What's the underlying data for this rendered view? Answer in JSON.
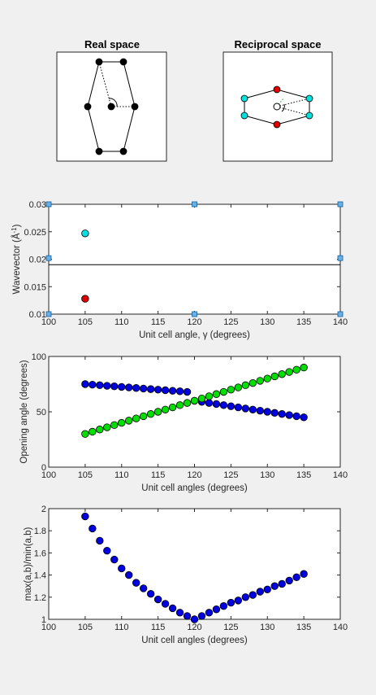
{
  "panels": {
    "real_space": {
      "title": "Real space",
      "markers": [
        {
          "x": 122,
          "y": 76,
          "color": "#000000"
        },
        {
          "x": 152,
          "y": 76,
          "color": "#000000"
        },
        {
          "x": 108,
          "y": 131,
          "color": "#000000"
        },
        {
          "x": 137,
          "y": 131,
          "color": "#000000"
        },
        {
          "x": 166,
          "y": 131,
          "color": "#000000"
        },
        {
          "x": 122,
          "y": 186,
          "color": "#000000"
        },
        {
          "x": 152,
          "y": 186,
          "color": "#000000"
        }
      ]
    },
    "reciprocal_space": {
      "title": "Reciprocal space",
      "markers": [
        {
          "x": 341,
          "y": 110,
          "color": "#e00000"
        },
        {
          "x": 341,
          "y": 153,
          "color": "#e00000"
        },
        {
          "x": 301,
          "y": 121,
          "color": "#00e0e0"
        },
        {
          "x": 381,
          "y": 121,
          "color": "#00e0e0"
        },
        {
          "x": 301,
          "y": 142,
          "color": "#00e0e0"
        },
        {
          "x": 381,
          "y": 142,
          "color": "#00e0e0"
        }
      ]
    }
  },
  "chart_data": [
    {
      "type": "scatter",
      "xlabel": "Unit cell angle, γ (degrees)",
      "ylabel_main": "Wavevector (Å",
      "ylabel_sup": "-1",
      "ylabel_end": ")",
      "xlim": [
        100,
        140
      ],
      "ylim": [
        0.01,
        0.03
      ],
      "xticks": [
        100,
        105,
        110,
        115,
        120,
        125,
        130,
        135,
        140
      ],
      "yticks": [
        0.01,
        0.015,
        0.02,
        0.025,
        0.03
      ],
      "ytick_labels": [
        "0.01",
        "0.015",
        "0.02",
        "0.025",
        "0.03"
      ],
      "hline": 0.019,
      "handles": [
        [
          100,
          0.03
        ],
        [
          120,
          0.03
        ],
        [
          140,
          0.03
        ],
        [
          100,
          0.0202
        ],
        [
          140,
          0.0202
        ],
        [
          100,
          0.01
        ],
        [
          120,
          0.01
        ],
        [
          140,
          0.01
        ]
      ],
      "handle_color": "#6ab0e4",
      "series": [
        {
          "x": [
            105
          ],
          "y": [
            0.0247
          ],
          "color": "#00e0e0"
        },
        {
          "x": [
            105
          ],
          "y": [
            0.0128
          ],
          "color": "#e00000"
        }
      ]
    },
    {
      "type": "scatter",
      "xlabel": "Unit cell angles (degrees)",
      "ylabel": "Opening angle (degrees)",
      "xlim": [
        100,
        140
      ],
      "ylim": [
        0,
        100
      ],
      "xticks": [
        100,
        105,
        110,
        115,
        120,
        125,
        130,
        135,
        140
      ],
      "yticks": [
        0,
        50,
        100
      ],
      "ytick_labels": [
        "0",
        "50",
        "100"
      ],
      "series": [
        {
          "color": "#0000e0",
          "x": [
            105,
            106,
            107,
            108,
            109,
            110,
            111,
            112,
            113,
            114,
            115,
            116,
            117,
            118,
            119,
            120,
            121,
            122,
            123,
            124,
            125,
            126,
            127,
            128,
            129,
            130,
            131,
            132,
            133,
            134,
            135
          ],
          "y": [
            75,
            74.5,
            74,
            73.5,
            73,
            72.5,
            72,
            71.5,
            71,
            70.5,
            70,
            69.5,
            69,
            68.5,
            68,
            60,
            59,
            58,
            57,
            56,
            55,
            54,
            53,
            52,
            51,
            50,
            49,
            48,
            47,
            46,
            45
          ]
        },
        {
          "color": "#00e000",
          "x": [
            105,
            106,
            107,
            108,
            109,
            110,
            111,
            112,
            113,
            114,
            115,
            116,
            117,
            118,
            119,
            120,
            121,
            122,
            123,
            124,
            125,
            126,
            127,
            128,
            129,
            130,
            131,
            132,
            133,
            134,
            135
          ],
          "y": [
            30,
            32,
            34,
            36,
            38,
            40,
            42,
            44,
            46,
            48,
            50,
            52,
            54,
            56,
            58,
            60,
            62,
            64,
            66,
            68,
            70,
            72,
            74,
            76,
            78,
            80,
            82,
            84,
            86,
            88,
            90
          ]
        }
      ]
    },
    {
      "type": "scatter",
      "xlabel": "Unit cell angles (degrees)",
      "ylabel": "max(a,b)/min(a,b)",
      "xlim": [
        100,
        140
      ],
      "ylim": [
        1,
        2
      ],
      "xticks": [
        100,
        105,
        110,
        115,
        120,
        125,
        130,
        135,
        140
      ],
      "yticks": [
        1,
        1.2,
        1.4,
        1.6,
        1.8,
        2
      ],
      "ytick_labels": [
        "1",
        "1.2",
        "1.4",
        "1.6",
        "1.8",
        "2"
      ],
      "series": [
        {
          "color": "#0000e0",
          "x": [
            105,
            106,
            107,
            108,
            109,
            110,
            111,
            112,
            113,
            114,
            115,
            116,
            117,
            118,
            119,
            120,
            121,
            122,
            123,
            124,
            125,
            126,
            127,
            128,
            129,
            130,
            131,
            132,
            133,
            134,
            135
          ],
          "y": [
            1.93,
            1.82,
            1.71,
            1.62,
            1.54,
            1.46,
            1.4,
            1.33,
            1.28,
            1.23,
            1.18,
            1.14,
            1.1,
            1.06,
            1.03,
            1.0,
            1.03,
            1.06,
            1.09,
            1.12,
            1.15,
            1.17,
            1.2,
            1.22,
            1.25,
            1.27,
            1.3,
            1.32,
            1.35,
            1.38,
            1.41
          ]
        }
      ]
    }
  ]
}
